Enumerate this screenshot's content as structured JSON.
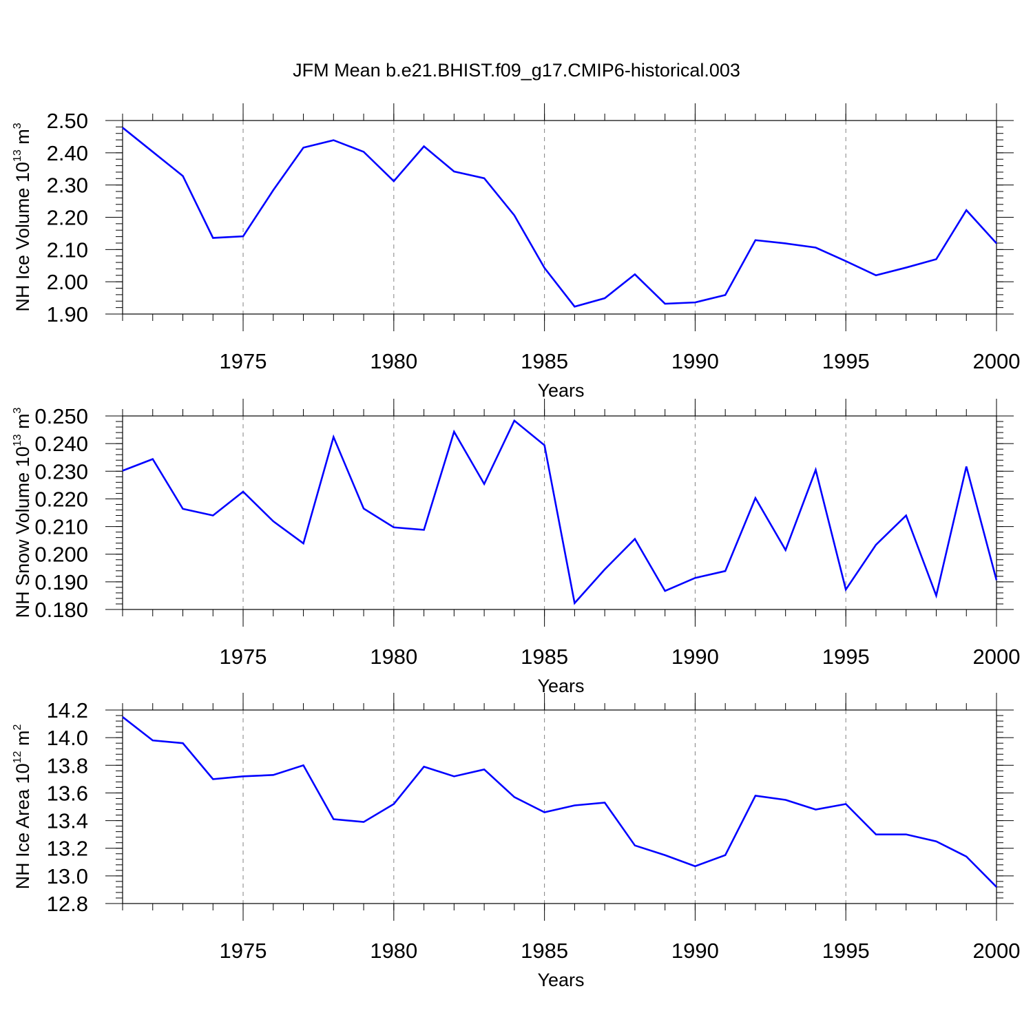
{
  "figure": {
    "title": "JFM Mean b.e21.BHIST.f09_g17.CMIP6-historical.003",
    "line_color": "#0000ff",
    "gridline_color": "#808080"
  },
  "chart_data": [
    {
      "type": "line",
      "ylabel": {
        "text": "NH Ice Volume 10",
        "exp": "13",
        "unit": " m",
        "unit_exp": "3"
      },
      "xlabel": "Years",
      "xlim": [
        1971,
        2000
      ],
      "ylim": [
        1.9,
        2.5
      ],
      "x_ticks": [
        1975,
        1980,
        1985,
        1990,
        1995,
        2000
      ],
      "y_ticks": [
        "1.90",
        "2.00",
        "2.10",
        "2.20",
        "2.30",
        "2.40",
        "2.50"
      ],
      "x_minor_step": 1,
      "y_minor_step": 0.02,
      "grid": "vertical dashed at major x ticks",
      "x": [
        1971,
        1972,
        1973,
        1974,
        1975,
        1976,
        1977,
        1978,
        1979,
        1980,
        1981,
        1982,
        1983,
        1984,
        1985,
        1986,
        1987,
        1988,
        1989,
        1990,
        1991,
        1992,
        1993,
        1994,
        1995,
        1996,
        1997,
        1998,
        1999,
        2000
      ],
      "values": [
        2.478,
        2.403,
        2.328,
        2.136,
        2.141,
        2.284,
        2.416,
        2.439,
        2.403,
        2.312,
        2.42,
        2.342,
        2.321,
        2.206,
        2.043,
        1.923,
        1.949,
        2.023,
        1.932,
        1.936,
        1.959,
        2.129,
        2.119,
        2.106,
        2.064,
        2.02,
        2.044,
        2.07,
        2.222,
        2.119
      ]
    },
    {
      "type": "line",
      "ylabel": {
        "text": "NH Snow Volume 10",
        "exp": "13",
        "unit": " m",
        "unit_exp": "3"
      },
      "xlabel": "Years",
      "xlim": [
        1971,
        2000
      ],
      "ylim": [
        0.18,
        0.25
      ],
      "x_ticks": [
        1975,
        1980,
        1985,
        1990,
        1995,
        2000
      ],
      "y_ticks": [
        "0.180",
        "0.190",
        "0.200",
        "0.210",
        "0.220",
        "0.230",
        "0.240",
        "0.250"
      ],
      "x_minor_step": 1,
      "y_minor_step": 0.002,
      "grid": "vertical dashed at major x ticks",
      "x": [
        1971,
        1972,
        1973,
        1974,
        1975,
        1976,
        1977,
        1978,
        1979,
        1980,
        1981,
        1982,
        1983,
        1984,
        1985,
        1986,
        1987,
        1988,
        1989,
        1990,
        1991,
        1992,
        1993,
        1994,
        1995,
        1996,
        1997,
        1998,
        1999,
        2000
      ],
      "values": [
        0.2302,
        0.2344,
        0.2164,
        0.214,
        0.2226,
        0.2119,
        0.2039,
        0.2424,
        0.2165,
        0.2097,
        0.2088,
        0.2443,
        0.2254,
        0.2483,
        0.2394,
        0.1823,
        0.1945,
        0.2055,
        0.1867,
        0.1914,
        0.1939,
        0.2203,
        0.2015,
        0.2305,
        0.1872,
        0.2034,
        0.214,
        0.185,
        0.2317,
        0.1906
      ]
    },
    {
      "type": "line",
      "ylabel": {
        "text": "NH Ice Area 10",
        "exp": "12",
        "unit": " m",
        "unit_exp": "2"
      },
      "xlabel": "Years",
      "xlim": [
        1971,
        2000
      ],
      "ylim": [
        12.8,
        14.2
      ],
      "x_ticks": [
        1975,
        1980,
        1985,
        1990,
        1995,
        2000
      ],
      "y_ticks": [
        "12.8",
        "13.0",
        "13.2",
        "13.4",
        "13.6",
        "13.8",
        "14.0",
        "14.2"
      ],
      "x_minor_step": 1,
      "y_minor_step": 0.04,
      "grid": "vertical dashed at major x ticks",
      "x": [
        1971,
        1972,
        1973,
        1974,
        1975,
        1976,
        1977,
        1978,
        1979,
        1980,
        1981,
        1982,
        1983,
        1984,
        1985,
        1986,
        1987,
        1988,
        1989,
        1990,
        1991,
        1992,
        1993,
        1994,
        1995,
        1996,
        1997,
        1998,
        1999,
        2000
      ],
      "values": [
        14.15,
        13.98,
        13.96,
        13.7,
        13.72,
        13.73,
        13.8,
        13.41,
        13.39,
        13.52,
        13.79,
        13.72,
        13.77,
        13.57,
        13.46,
        13.51,
        13.53,
        13.22,
        13.15,
        13.07,
        13.15,
        13.58,
        13.55,
        13.48,
        13.52,
        13.3,
        13.3,
        13.25,
        13.14,
        12.92
      ]
    }
  ]
}
